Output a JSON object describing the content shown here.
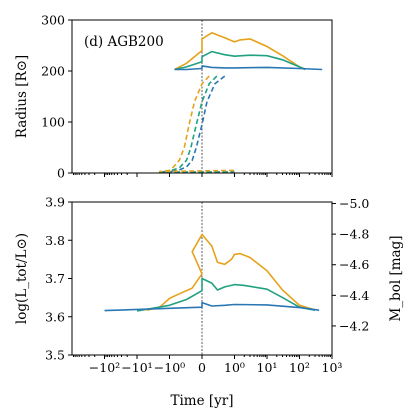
{
  "chart_data": [
    {
      "type": "line",
      "annotation": "(d) AGB200",
      "ylabel": "Radius [R⊙]",
      "ylim": [
        0,
        300
      ],
      "yticks": [
        0,
        100,
        200,
        300
      ],
      "x_scale": "symlog",
      "x_marker": 0,
      "series": [
        {
          "color": "#e6a21d",
          "style": "solid",
          "x": [
            -0.7,
            -0.3,
            0,
            0.1,
            0.2,
            0.5,
            1,
            1.5,
            3,
            10,
            30,
            100,
            150
          ],
          "y": [
            203,
            215,
            240,
            263,
            275,
            265,
            257,
            261,
            263,
            248,
            230,
            208,
            204
          ]
        },
        {
          "color": "#20a181",
          "style": "solid",
          "x": [
            -0.7,
            -0.3,
            0,
            0.1,
            0.2,
            0.5,
            1,
            3,
            10,
            30,
            100,
            150
          ],
          "y": [
            203,
            208,
            218,
            228,
            238,
            232,
            229,
            231,
            230,
            222,
            208,
            203
          ]
        },
        {
          "color": "#2a77b4",
          "style": "solid",
          "x": [
            -0.7,
            -0.3,
            0,
            0.1,
            0.2,
            0.5,
            1,
            10,
            100,
            500
          ],
          "y": [
            203,
            203,
            205,
            210,
            207,
            206,
            206,
            207,
            205,
            203
          ]
        },
        {
          "color": "#2a77b4",
          "style": "dashed",
          "x": [
            -0.02,
            -0.04,
            -0.07,
            -0.1,
            -0.15,
            -0.2,
            -0.3,
            -0.5,
            -1,
            -2,
            -0.01
          ],
          "y": [
            190,
            175,
            140,
            95,
            50,
            25,
            12,
            6,
            3,
            2,
            2
          ]
        },
        {
          "color": "#20a181",
          "style": "dashed",
          "x": [
            -0.035,
            -0.06,
            -0.1,
            -0.15,
            -0.22,
            -0.3,
            -0.5,
            -1,
            -2,
            -0.01
          ],
          "y": [
            190,
            175,
            140,
            95,
            50,
            25,
            10,
            4,
            2,
            2
          ]
        },
        {
          "color": "#e6a21d",
          "style": "dashed",
          "x": [
            -0.06,
            -0.1,
            -0.17,
            -0.25,
            -0.35,
            -0.5,
            -0.8,
            -1,
            -2,
            -0.01
          ],
          "y": [
            190,
            175,
            140,
            95,
            50,
            25,
            10,
            5,
            3,
            5
          ]
        }
      ]
    },
    {
      "type": "line",
      "ylabel": "log(L_tot/L⊙)",
      "ylabel_right": "M_bol [mag]",
      "xlabel": "Time [yr]",
      "ylim": [
        3.5,
        3.9
      ],
      "yticks": [
        3.5,
        3.6,
        3.7,
        3.8,
        3.9
      ],
      "yticks_right": [
        -4.2,
        -4.4,
        -4.6,
        -4.8,
        -5.0
      ],
      "x_scale": "symlog",
      "x_ticklabels": [
        "−10²",
        "−10¹",
        "−10⁰",
        "0",
        "10⁰",
        "10¹",
        "10²",
        "10³"
      ],
      "x_marker": 0,
      "series": [
        {
          "color": "#e6a21d",
          "style": "solid",
          "x": [
            -5,
            -2,
            -1,
            -0.5,
            -0.2,
            0,
            0.05,
            0.1,
            0.2,
            0.3,
            0.5,
            0.8,
            1,
            1.5,
            3,
            10,
            30,
            100,
            300
          ],
          "y": [
            3.617,
            3.625,
            3.648,
            3.66,
            3.675,
            3.712,
            3.77,
            3.815,
            3.785,
            3.742,
            3.737,
            3.75,
            3.763,
            3.765,
            3.755,
            3.72,
            3.67,
            3.63,
            3.618
          ]
        },
        {
          "color": "#20a181",
          "style": "solid",
          "x": [
            -10,
            -1,
            -0.3,
            0,
            0.1,
            0.2,
            0.3,
            0.5,
            1,
            2,
            10,
            30,
            100,
            300
          ],
          "y": [
            3.615,
            3.63,
            3.645,
            3.668,
            3.7,
            3.688,
            3.67,
            3.678,
            3.684,
            3.682,
            3.672,
            3.65,
            3.625,
            3.617
          ]
        },
        {
          "color": "#2a77b4",
          "style": "solid",
          "x": [
            -100,
            -1,
            0,
            0.1,
            0.2,
            0.5,
            1,
            10,
            100,
            400
          ],
          "y": [
            3.616,
            3.622,
            3.625,
            3.637,
            3.628,
            3.63,
            3.632,
            3.631,
            3.624,
            3.617
          ]
        }
      ]
    }
  ]
}
